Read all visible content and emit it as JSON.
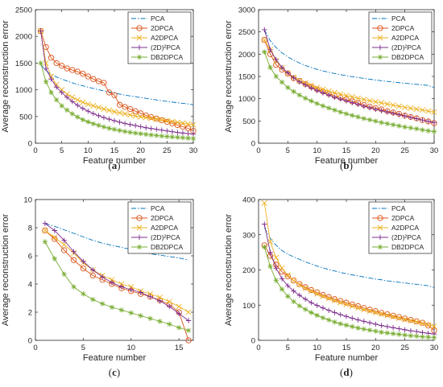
{
  "chart_data": [
    {
      "type": "line",
      "panel_label": "a",
      "xlabel": "Feature number",
      "ylabel": "Average reconstruction error",
      "xlim": [
        0,
        30
      ],
      "ylim": [
        0,
        2500
      ],
      "xticks": [
        0,
        5,
        10,
        15,
        20,
        25,
        30
      ],
      "yticks": [
        0,
        500,
        1000,
        1500,
        2000,
        2500
      ],
      "legend_position": "top-right",
      "series": [
        {
          "name": "PCA",
          "values": [
            1480,
            1350,
            1290,
            1240,
            1200,
            1165,
            1130,
            1100,
            1075,
            1050,
            1025,
            1000,
            980,
            960,
            940,
            920,
            900,
            885,
            870,
            855,
            840,
            825,
            810,
            795,
            782,
            770,
            758,
            746,
            735,
            720
          ]
        },
        {
          "name": "2DPCA",
          "values": [
            2100,
            1800,
            1600,
            1500,
            1450,
            1400,
            1370,
            1340,
            1300,
            1250,
            1200,
            1160,
            1130,
            950,
            900,
            720,
            680,
            640,
            600,
            560,
            520,
            490,
            460,
            430,
            400,
            370,
            340,
            310,
            280,
            230
          ]
        },
        {
          "name": "A2DPCA",
          "values": [
            2100,
            1500,
            1250,
            1100,
            1000,
            920,
            860,
            810,
            765,
            730,
            700,
            670,
            640,
            615,
            590,
            570,
            550,
            530,
            510,
            495,
            480,
            465,
            450,
            435,
            420,
            405,
            390,
            375,
            360,
            345
          ]
        },
        {
          "name": "(2D)²PCA",
          "values": [
            2100,
            1400,
            1200,
            1050,
            950,
            860,
            780,
            710,
            650,
            600,
            555,
            515,
            480,
            450,
            420,
            395,
            370,
            350,
            330,
            310,
            290,
            275,
            260,
            245,
            230,
            215,
            200,
            190,
            180,
            170
          ]
        },
        {
          "name": "DB2DPCA",
          "values": [
            1500,
            1150,
            950,
            810,
            700,
            620,
            550,
            490,
            440,
            400,
            365,
            335,
            305,
            280,
            258,
            238,
            220,
            205,
            190,
            178,
            166,
            155,
            145,
            135,
            126,
            118,
            110,
            102,
            95,
            88
          ]
        }
      ]
    },
    {
      "type": "line",
      "panel_label": "b",
      "xlabel": "Feature number",
      "ylabel": "Average reconstruction error",
      "xlim": [
        0,
        30
      ],
      "ylim": [
        0,
        3000
      ],
      "xticks": [
        0,
        5,
        10,
        15,
        20,
        25,
        30
      ],
      "yticks": [
        0,
        500,
        1000,
        1500,
        2000,
        2500,
        3000
      ],
      "legend_position": "top-right",
      "series": [
        {
          "name": "PCA",
          "values": [
            2550,
            2300,
            2150,
            2030,
            1940,
            1865,
            1800,
            1745,
            1700,
            1660,
            1625,
            1593,
            1565,
            1540,
            1517,
            1495,
            1475,
            1455,
            1437,
            1420,
            1404,
            1389,
            1374,
            1360,
            1347,
            1334,
            1322,
            1310,
            1298,
            1250
          ]
        },
        {
          "name": "2DPCA",
          "values": [
            2320,
            2000,
            1760,
            1650,
            1560,
            1460,
            1400,
            1330,
            1270,
            1210,
            1160,
            1110,
            1060,
            1020,
            980,
            940,
            900,
            860,
            820,
            790,
            760,
            720,
            690,
            660,
            620,
            590,
            560,
            520,
            490,
            450
          ]
        },
        {
          "name": "A2DPCA",
          "values": [
            2320,
            2100,
            1850,
            1700,
            1580,
            1480,
            1400,
            1350,
            1300,
            1250,
            1210,
            1170,
            1135,
            1100,
            1070,
            1040,
            1010,
            980,
            955,
            930,
            905,
            880,
            855,
            830,
            805,
            785,
            765,
            745,
            720,
            700
          ]
        },
        {
          "name": "(2D)²PCA",
          "values": [
            2550,
            2100,
            1880,
            1700,
            1580,
            1470,
            1380,
            1310,
            1240,
            1180,
            1130,
            1080,
            1030,
            990,
            950,
            910,
            870,
            830,
            795,
            760,
            730,
            700,
            670,
            640,
            610,
            580,
            550,
            520,
            490,
            460
          ]
        },
        {
          "name": "DB2DPCA",
          "values": [
            2050,
            1700,
            1500,
            1370,
            1250,
            1160,
            1080,
            1010,
            950,
            890,
            840,
            790,
            745,
            700,
            660,
            625,
            590,
            555,
            525,
            495,
            465,
            440,
            415,
            390,
            365,
            345,
            325,
            300,
            280,
            260
          ]
        }
      ]
    },
    {
      "type": "line",
      "panel_label": "c",
      "xlabel": "Feature number",
      "ylabel": "Average reconstruction error",
      "xlim": [
        0,
        16.5
      ],
      "ylim": [
        0,
        10
      ],
      "xticks": [
        0,
        5,
        10,
        15
      ],
      "yticks": [
        0,
        2,
        4,
        6,
        8,
        10
      ],
      "legend_position": "top-right",
      "series": [
        {
          "name": "PCA",
          "values": [
            8.3,
            8.1,
            7.85,
            7.6,
            7.35,
            7.1,
            6.9,
            6.75,
            6.6,
            6.45,
            6.3,
            6.15,
            6.05,
            5.95,
            5.85,
            5.7
          ]
        },
        {
          "name": "2DPCA",
          "values": [
            7.8,
            7.2,
            6.4,
            5.7,
            5.1,
            4.6,
            4.3,
            4.0,
            3.7,
            3.5,
            3.3,
            3.1,
            2.85,
            2.55,
            2.0,
            0.0
          ]
        },
        {
          "name": "A2DPCA",
          "values": [
            7.8,
            7.3,
            6.8,
            6.2,
            5.5,
            5.0,
            4.6,
            4.3,
            4.0,
            3.8,
            3.5,
            3.3,
            3.05,
            2.75,
            2.4,
            2.0
          ]
        },
        {
          "name": "(2D)²PCA",
          "values": [
            8.3,
            7.8,
            7.1,
            6.3,
            5.6,
            5.0,
            4.5,
            4.1,
            3.8,
            3.6,
            3.4,
            3.1,
            2.8,
            2.4,
            1.9,
            1.4
          ]
        },
        {
          "name": "DB2DPCA",
          "values": [
            7.0,
            5.8,
            4.7,
            3.8,
            3.3,
            2.9,
            2.6,
            2.35,
            2.15,
            1.95,
            1.75,
            1.55,
            1.35,
            1.15,
            0.9,
            0.7
          ]
        }
      ]
    },
    {
      "type": "line",
      "panel_label": "d",
      "xlabel": "Feature number",
      "ylabel": "Average reconstruction error",
      "xlim": [
        0,
        30
      ],
      "ylim": [
        0,
        400
      ],
      "xticks": [
        0,
        5,
        10,
        15,
        20,
        25,
        30
      ],
      "yticks": [
        0,
        100,
        200,
        300,
        400
      ],
      "legend_position": "top-right",
      "series": [
        {
          "name": "PCA",
          "values": [
            320,
            290,
            270,
            255,
            245,
            237,
            230,
            223,
            217,
            211,
            206,
            201,
            197,
            193,
            189,
            186,
            183,
            180,
            177,
            174,
            172,
            169,
            167,
            165,
            163,
            161,
            159,
            157,
            155,
            150
          ]
        },
        {
          "name": "2DPCA",
          "values": [
            270,
            240,
            215,
            195,
            182,
            170,
            160,
            151,
            143,
            136,
            129,
            123,
            117,
            112,
            107,
            102,
            97,
            92,
            87,
            83,
            78,
            74,
            70,
            66,
            62,
            58,
            54,
            50,
            42,
            28
          ]
        },
        {
          "name": "A2DPCA",
          "values": [
            390,
            280,
            235,
            205,
            185,
            170,
            158,
            148,
            140,
            132,
            125,
            119,
            113,
            107,
            102,
            97,
            92,
            87,
            83,
            79,
            75,
            71,
            67,
            63,
            59,
            56,
            52,
            48,
            44,
            40
          ]
        },
        {
          "name": "(2D)²PCA",
          "values": [
            330,
            250,
            205,
            175,
            155,
            140,
            128,
            117,
            107,
            99,
            92,
            85,
            79,
            73,
            68,
            63,
            58,
            54,
            50,
            46,
            42,
            39,
            36,
            33,
            30,
            27,
            25,
            22,
            20,
            18
          ]
        },
        {
          "name": "DB2DPCA",
          "values": [
            265,
            210,
            170,
            145,
            125,
            110,
            98,
            88,
            79,
            71,
            64,
            58,
            52,
            47,
            43,
            39,
            35,
            32,
            29,
            26,
            23,
            21,
            19,
            17,
            15,
            13,
            12,
            10,
            9,
            8
          ]
        }
      ]
    }
  ],
  "style": {
    "series_colors": [
      "#0072BD",
      "#D95319",
      "#EDB120",
      "#7E2F8E",
      "#77AC30"
    ],
    "series_markers": [
      "none",
      "circle",
      "x-mark",
      "plus",
      "asterisk"
    ],
    "series_dash": [
      "dash-dot",
      "solid",
      "solid",
      "solid",
      "solid"
    ]
  }
}
